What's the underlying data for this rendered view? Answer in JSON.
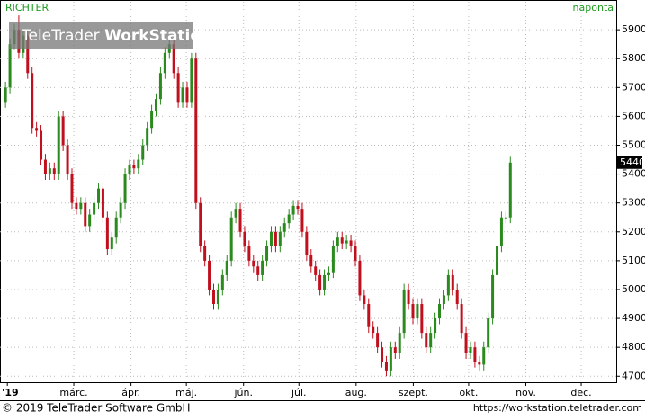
{
  "chart_data": {
    "type": "candlestick",
    "title": "RICHTER",
    "subtitle": "naponta",
    "watermark": [
      "TeleTrader",
      "WorkStation"
    ],
    "footer": [
      "© 2019 TeleTrader Software GmbH",
      "https://workstation.teletrader.com"
    ],
    "up_color": "#2a8a1e",
    "down_color": "#c0101e",
    "title_color": "#1f9a1f",
    "grid": true,
    "xlim": [
      20,
      354
    ],
    "xticks": [
      {
        "value": 24,
        "label": "'19"
      },
      {
        "value": 60,
        "label": "márc."
      },
      {
        "value": 91,
        "label": "ápr."
      },
      {
        "value": 121,
        "label": "máj."
      },
      {
        "value": 152,
        "label": "jún."
      },
      {
        "value": 182,
        "label": "júl."
      },
      {
        "value": 213,
        "label": "aug."
      },
      {
        "value": 244,
        "label": "szept."
      },
      {
        "value": 274,
        "label": "okt."
      },
      {
        "value": 305,
        "label": "nov."
      },
      {
        "value": 335,
        "label": "dec."
      }
    ],
    "ylim": [
      4679,
      5997
    ],
    "yticks": [
      4700,
      4800,
      4900,
      5000,
      5100,
      5200,
      5300,
      5400,
      5500,
      5600,
      5700,
      5800,
      5900
    ],
    "x": [
      23,
      25.4,
      27.8,
      30.2,
      32.6,
      35,
      37.4,
      39.8,
      42.2,
      44.6,
      47,
      49.4,
      51.8,
      54.2,
      56.6,
      59,
      61.4,
      63.8,
      66.2,
      68.6,
      71,
      73.4,
      75.8,
      78.2,
      80.6,
      83,
      85.4,
      87.8,
      90.2,
      92.6,
      95,
      97.4,
      99.8,
      102.2,
      104.6,
      107,
      109.4,
      111.8,
      114.2,
      116.6,
      119,
      121.4,
      123.8,
      126.2,
      128.6,
      131,
      133.4,
      135.8,
      138.2,
      140.6,
      143,
      145.4,
      147.8,
      150.2,
      152.6,
      155,
      157.4,
      159.8,
      162.2,
      164.6,
      167,
      169.4,
      171.8,
      174.2,
      176.6,
      179,
      181.4,
      183.8,
      186.2,
      188.6,
      191,
      193.4,
      195.8,
      198.2,
      200.6,
      203,
      205.4,
      207.8,
      210.2,
      212.6,
      215,
      217.4,
      219.8,
      222.2,
      224.6,
      227,
      229.4,
      231.8,
      234.2,
      236.6,
      239,
      241.4,
      243.8,
      246.2,
      248.6,
      251,
      253.4,
      255.8,
      258.2,
      260.6,
      263,
      265.4,
      267.8,
      270.2,
      272.6,
      275,
      277.4,
      279.8,
      282.2,
      284.6,
      287,
      289.4,
      291.8,
      294.2,
      296.6
    ],
    "open": [
      5650,
      5700,
      5850,
      5900,
      5820,
      5880,
      5750,
      5560,
      5550,
      5450,
      5400,
      5420,
      5400,
      5600,
      5500,
      5400,
      5300,
      5280,
      5300,
      5220,
      5260,
      5300,
      5350,
      5250,
      5140,
      5180,
      5250,
      5300,
      5400,
      5430,
      5420,
      5450,
      5500,
      5560,
      5620,
      5660,
      5750,
      5820,
      5850,
      5750,
      5650,
      5700,
      5650,
      5800,
      5300,
      5150,
      5100,
      5000,
      4950,
      5000,
      5050,
      5100,
      5250,
      5280,
      5200,
      5150,
      5100,
      5080,
      5050,
      5100,
      5150,
      5200,
      5150,
      5200,
      5230,
      5260,
      5290,
      5280,
      5200,
      5120,
      5080,
      5050,
      5000,
      5050,
      5060,
      5150,
      5180,
      5160,
      5170,
      5150,
      5100,
      4980,
      4950,
      4870,
      4850,
      4800,
      4750,
      4720,
      4800,
      4780,
      4850,
      5000,
      4950,
      4900,
      4950,
      4850,
      4800,
      4850,
      4900,
      4950,
      4980,
      5050,
      5000,
      4950,
      4850,
      4780,
      4800,
      4750,
      4740,
      4800,
      4900,
      5050,
      5150,
      5250,
      5250
    ],
    "high": [
      5720,
      5870,
      5920,
      5950,
      5900,
      5900,
      5770,
      5580,
      5570,
      5470,
      5440,
      5440,
      5620,
      5620,
      5520,
      5420,
      5320,
      5320,
      5320,
      5280,
      5320,
      5370,
      5370,
      5270,
      5200,
      5270,
      5320,
      5420,
      5450,
      5450,
      5470,
      5520,
      5580,
      5640,
      5680,
      5770,
      5840,
      5870,
      5870,
      5770,
      5720,
      5720,
      5820,
      5820,
      5320,
      5170,
      5120,
      5020,
      5020,
      5070,
      5120,
      5270,
      5300,
      5300,
      5220,
      5170,
      5120,
      5100,
      5120,
      5170,
      5220,
      5220,
      5220,
      5250,
      5280,
      5310,
      5310,
      5300,
      5220,
      5140,
      5100,
      5070,
      5070,
      5080,
      5170,
      5200,
      5200,
      5190,
      5190,
      5170,
      5120,
      5000,
      4970,
      4890,
      4870,
      4820,
      4770,
      4820,
      4820,
      4870,
      5020,
      5020,
      4970,
      4970,
      4970,
      4870,
      4870,
      4920,
      4970,
      5000,
      5070,
      5070,
      5020,
      4970,
      4870,
      4820,
      4820,
      4770,
      4820,
      4920,
      5070,
      5170,
      5270,
      5270,
      5460
    ],
    "low": [
      5630,
      5680,
      5830,
      5800,
      5800,
      5730,
      5540,
      5530,
      5430,
      5380,
      5380,
      5380,
      5380,
      5480,
      5380,
      5280,
      5260,
      5260,
      5200,
      5200,
      5240,
      5280,
      5230,
      5120,
      5120,
      5160,
      5230,
      5280,
      5380,
      5400,
      5400,
      5430,
      5480,
      5540,
      5600,
      5640,
      5730,
      5800,
      5730,
      5630,
      5630,
      5630,
      5630,
      5280,
      5130,
      5080,
      4980,
      4930,
      4930,
      4980,
      5030,
      5080,
      5230,
      5180,
      5130,
      5080,
      5060,
      5030,
      5030,
      5080,
      5130,
      5130,
      5130,
      5180,
      5210,
      5240,
      5260,
      5180,
      5100,
      5060,
      5030,
      4980,
      4980,
      5030,
      5040,
      5130,
      5140,
      5140,
      5130,
      5080,
      4960,
      4930,
      4850,
      4830,
      4780,
      4730,
      4700,
      4700,
      4760,
      4760,
      4830,
      4930,
      4880,
      4880,
      4830,
      4780,
      4780,
      4830,
      4880,
      4930,
      4960,
      4980,
      4930,
      4830,
      4760,
      4760,
      4730,
      4720,
      4720,
      4780,
      4880,
      5030,
      5130,
      5230,
      5230
    ],
    "close": [
      5700,
      5850,
      5900,
      5820,
      5880,
      5750,
      5560,
      5550,
      5450,
      5400,
      5420,
      5400,
      5600,
      5500,
      5400,
      5300,
      5280,
      5300,
      5220,
      5260,
      5300,
      5350,
      5250,
      5140,
      5180,
      5250,
      5300,
      5400,
      5430,
      5420,
      5450,
      5500,
      5560,
      5620,
      5660,
      5750,
      5820,
      5850,
      5750,
      5650,
      5700,
      5650,
      5800,
      5300,
      5150,
      5100,
      5000,
      4950,
      5000,
      5050,
      5100,
      5250,
      5280,
      5200,
      5150,
      5100,
      5080,
      5050,
      5100,
      5150,
      5200,
      5150,
      5200,
      5230,
      5260,
      5290,
      5280,
      5200,
      5120,
      5080,
      5050,
      5000,
      5050,
      5060,
      5150,
      5180,
      5160,
      5170,
      5150,
      5100,
      4980,
      4950,
      4870,
      4850,
      4800,
      4750,
      4720,
      4800,
      4780,
      4850,
      5000,
      4950,
      4900,
      4950,
      4850,
      4800,
      4850,
      4900,
      4950,
      4980,
      5050,
      5000,
      4950,
      4850,
      4780,
      4800,
      4750,
      4740,
      4800,
      4900,
      5050,
      5150,
      5250,
      5250,
      5440
    ]
  }
}
